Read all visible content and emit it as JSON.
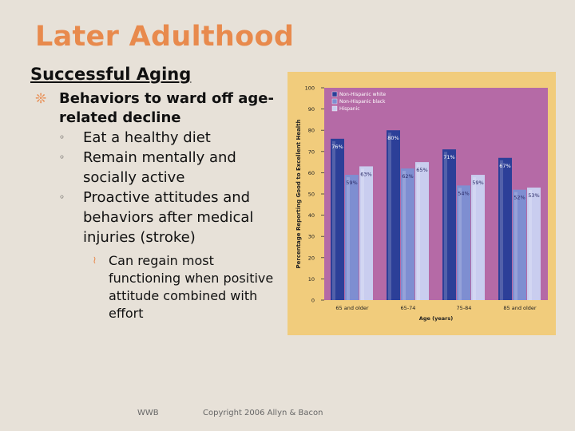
{
  "slide": {
    "title": "Later Adulthood",
    "subtitle": "Successful Aging",
    "bullet": "Behaviors to ward off age-related decline",
    "sub_bullets": [
      "Eat a healthy diet",
      "Remain mentally and socially active",
      "Proactive attitudes and behaviors after medical injuries (stroke)"
    ],
    "sub_sub_bullet": "Can regain most functioning when positive attitude combined with effort",
    "footer_left": "WWB",
    "footer_center": "Copyright 2006 Allyn & Bacon"
  },
  "colors": {
    "title": "#e88a4d",
    "plot_bg": "#b56aa6",
    "frame_bg": "#f1cc7c",
    "series": [
      "#2c3f98",
      "#7e8ed1",
      "#c9cdef"
    ]
  },
  "chart_data": {
    "type": "bar",
    "title": "",
    "xlabel": "Age (years)",
    "ylabel": "Percentage Reporting Good to Excellent Health",
    "ylim": [
      0,
      100
    ],
    "yticks": [
      0,
      10,
      20,
      30,
      40,
      50,
      60,
      70,
      80,
      90,
      100
    ],
    "categories": [
      "65 and older",
      "65-74",
      "75-84",
      "85 and older"
    ],
    "series": [
      {
        "name": "Non-Hispanic white",
        "values": [
          76,
          80,
          71,
          67
        ]
      },
      {
        "name": "Non-Hispanic black",
        "values": [
          59,
          62,
          54,
          52
        ]
      },
      {
        "name": "Hispanic",
        "values": [
          63,
          65,
          59,
          53
        ]
      }
    ],
    "data_labels": [
      [
        "76%",
        "59%",
        "63%"
      ],
      [
        "80%",
        "62%",
        "65%"
      ],
      [
        "71%",
        "54%",
        "59%"
      ],
      [
        "67%",
        "52%",
        "53%"
      ]
    ],
    "legend_position": "top-left",
    "grid": false
  }
}
